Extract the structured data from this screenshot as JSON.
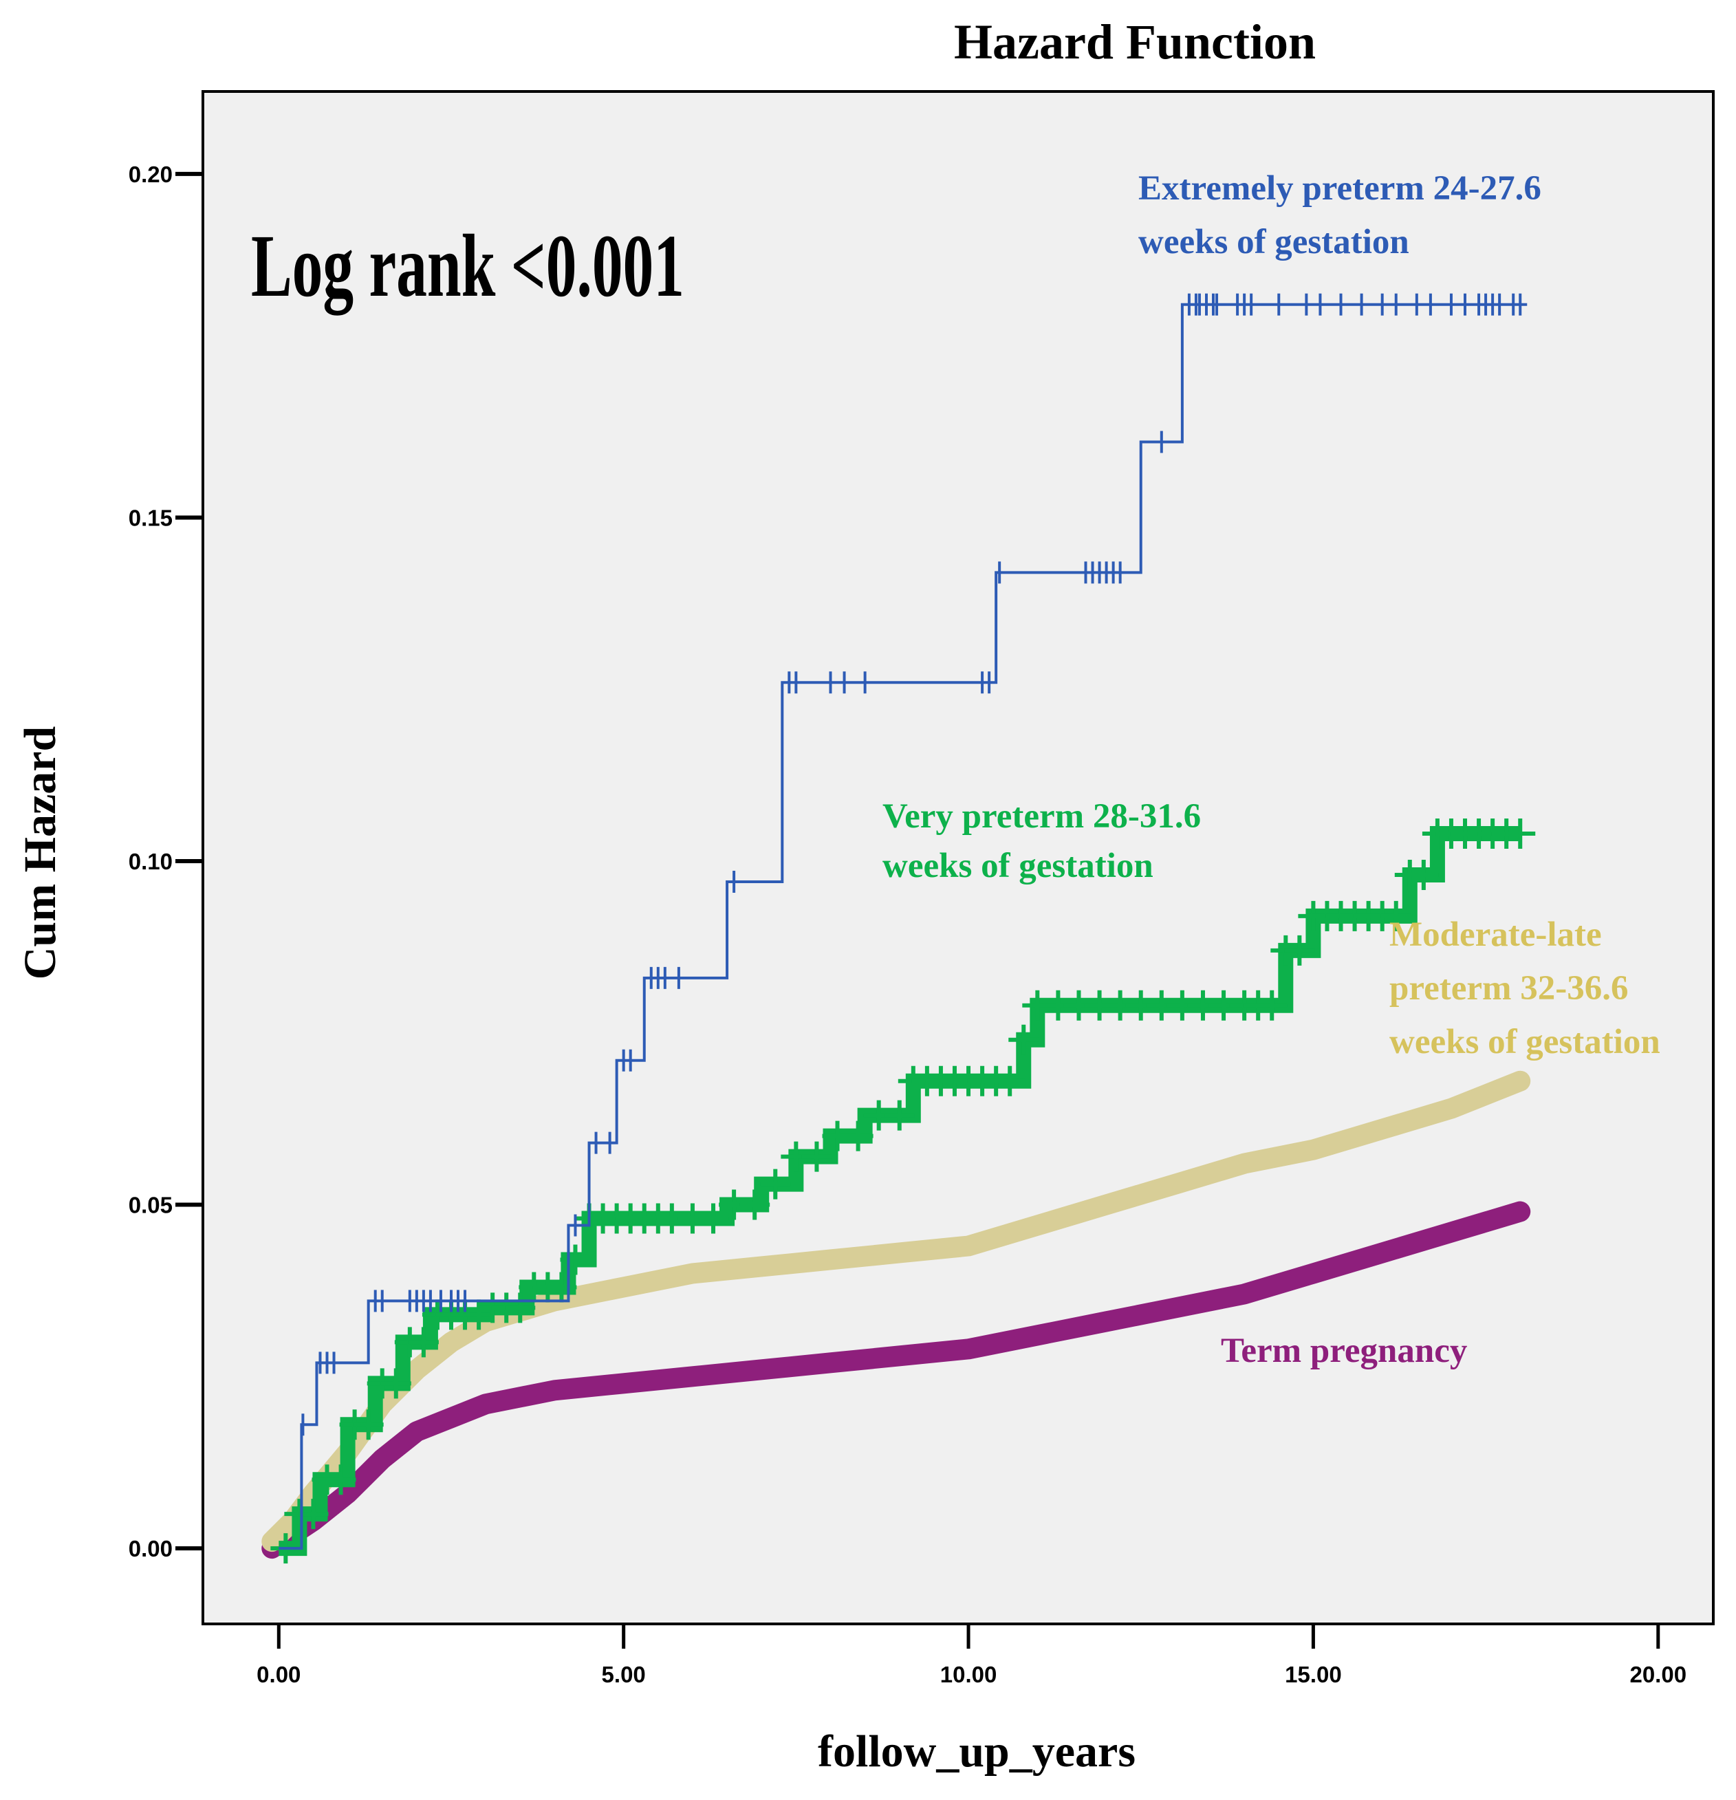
{
  "chart_data": {
    "type": "line",
    "title": "Hazard Function",
    "xlabel": "follow_up_years",
    "ylabel": "Cum Hazard",
    "xlim": [
      -1.1,
      20.8
    ],
    "ylim": [
      -0.011,
      0.212
    ],
    "x_ticks": [
      0,
      5,
      10,
      15,
      20
    ],
    "x_tick_labels": [
      "0.00",
      "5.00",
      "10.00",
      "15.00",
      "20.00"
    ],
    "y_ticks": [
      0,
      0.05,
      0.1,
      0.15,
      0.2
    ],
    "y_tick_labels": [
      "0.00",
      "0.05",
      "0.10",
      "0.15",
      "0.20"
    ],
    "grid": false,
    "annotation": "Log rank <0.001",
    "colors": {
      "background": "#f0f0f0",
      "extremely": "#2d5bb5",
      "very": "#0db14b",
      "moderate": "#d8ce97",
      "moderate_label": "#d6c25c",
      "term": "#8e1f7c"
    },
    "series": [
      {
        "name": "Extremely preterm 24-27.6 weeks of gestation",
        "label_lines": [
          "Extremely preterm 24-27.6",
          "weeks of gestation"
        ],
        "style": "step",
        "color_key": "extremely",
        "points": [
          [
            0,
            0
          ],
          [
            0.33,
            0.018
          ],
          [
            0.55,
            0.027
          ],
          [
            1.3,
            0.036
          ],
          [
            4.2,
            0.047
          ],
          [
            4.5,
            0.059
          ],
          [
            4.9,
            0.071
          ],
          [
            5.3,
            0.083
          ],
          [
            6.5,
            0.097
          ],
          [
            7.3,
            0.126
          ],
          [
            10.4,
            0.142
          ],
          [
            12.5,
            0.161
          ],
          [
            13.1,
            0.181
          ],
          [
            18.1,
            0.181
          ]
        ],
        "censor_x": [
          0.35,
          0.6,
          0.7,
          0.8,
          1.4,
          1.5,
          1.9,
          2.0,
          2.1,
          2.2,
          2.35,
          2.5,
          2.6,
          2.7,
          4.3,
          4.6,
          4.8,
          5.0,
          5.1,
          5.4,
          5.5,
          5.6,
          5.8,
          6.6,
          7.4,
          7.5,
          8.0,
          8.2,
          8.5,
          10.2,
          10.3,
          10.45,
          11.7,
          11.8,
          11.9,
          12.0,
          12.1,
          12.2,
          12.8,
          13.2,
          13.3,
          13.35,
          13.45,
          13.55,
          13.6,
          13.9,
          14.0,
          14.1,
          14.5,
          14.9,
          15.1,
          15.4,
          15.7,
          16.0,
          16.2,
          16.5,
          16.7,
          17.0,
          17.2,
          17.4,
          17.5,
          17.6,
          17.7,
          17.9,
          18.0
        ]
      },
      {
        "name": "Very preterm 28-31.6 weeks of gestation",
        "label_lines": [
          "Very  preterm 28-31.6",
          "weeks of gestation"
        ],
        "style": "dense-step",
        "color_key": "very",
        "points": [
          [
            0,
            0
          ],
          [
            0.3,
            0.005
          ],
          [
            0.6,
            0.01
          ],
          [
            1.0,
            0.018
          ],
          [
            1.4,
            0.024
          ],
          [
            1.8,
            0.03
          ],
          [
            2.2,
            0.034
          ],
          [
            3.0,
            0.035
          ],
          [
            3.6,
            0.038
          ],
          [
            4.2,
            0.042
          ],
          [
            4.5,
            0.048
          ],
          [
            5.5,
            0.048
          ],
          [
            6.5,
            0.05
          ],
          [
            7.0,
            0.053
          ],
          [
            7.5,
            0.057
          ],
          [
            8.0,
            0.06
          ],
          [
            8.5,
            0.063
          ],
          [
            9.2,
            0.068
          ],
          [
            10.5,
            0.068
          ],
          [
            10.8,
            0.074
          ],
          [
            11.0,
            0.079
          ],
          [
            14.3,
            0.079
          ],
          [
            14.6,
            0.087
          ],
          [
            15.0,
            0.092
          ],
          [
            16.2,
            0.092
          ],
          [
            16.4,
            0.098
          ],
          [
            16.8,
            0.104
          ],
          [
            18.0,
            0.104
          ]
        ],
        "censor_x": [
          0.1,
          0.3,
          0.5,
          0.7,
          0.9,
          1.1,
          1.3,
          1.5,
          1.7,
          1.9,
          2.1,
          2.3,
          2.5,
          2.7,
          2.9,
          3.1,
          3.3,
          3.5,
          3.7,
          3.9,
          4.1,
          4.3,
          4.5,
          4.7,
          4.9,
          5.1,
          5.3,
          5.5,
          5.7,
          6.0,
          6.3,
          6.6,
          6.9,
          7.2,
          7.5,
          7.8,
          8.1,
          8.4,
          8.7,
          9.0,
          9.2,
          9.4,
          9.6,
          9.8,
          10.0,
          10.2,
          10.4,
          10.6,
          10.8,
          11.0,
          11.3,
          11.6,
          11.9,
          12.2,
          12.5,
          12.8,
          13.1,
          13.4,
          13.7,
          14.0,
          14.2,
          14.4,
          14.6,
          14.8,
          15.0,
          15.2,
          15.4,
          15.6,
          15.8,
          16.0,
          16.2,
          16.4,
          16.6,
          16.8,
          17.0,
          17.2,
          17.4,
          17.6,
          17.8,
          18.0
        ]
      },
      {
        "name": "Moderate-late preterm 32-36.6 weeks of gestation",
        "label_lines": [
          "Moderate-late",
          "preterm 32-36.6",
          "weeks of gestation"
        ],
        "style": "thick",
        "color_key": "moderate",
        "points": [
          [
            -0.1,
            0.001
          ],
          [
            0.2,
            0.004
          ],
          [
            0.5,
            0.008
          ],
          [
            1.0,
            0.014
          ],
          [
            1.5,
            0.021
          ],
          [
            2.0,
            0.026
          ],
          [
            2.5,
            0.03
          ],
          [
            3.0,
            0.033
          ],
          [
            4.0,
            0.036
          ],
          [
            5.0,
            0.038
          ],
          [
            6.0,
            0.04
          ],
          [
            7.0,
            0.041
          ],
          [
            8.0,
            0.042
          ],
          [
            9.0,
            0.043
          ],
          [
            10.0,
            0.044
          ],
          [
            11.0,
            0.047
          ],
          [
            12.0,
            0.05
          ],
          [
            13.0,
            0.053
          ],
          [
            14.0,
            0.056
          ],
          [
            15.0,
            0.058
          ],
          [
            16.0,
            0.061
          ],
          [
            17.0,
            0.064
          ],
          [
            18.0,
            0.068
          ]
        ]
      },
      {
        "name": "Term pregnancy",
        "label_lines": [
          "Term pregnancy"
        ],
        "style": "thick",
        "color_key": "term",
        "points": [
          [
            -0.1,
            0
          ],
          [
            0.2,
            0.002
          ],
          [
            0.5,
            0.004
          ],
          [
            1.0,
            0.008
          ],
          [
            1.5,
            0.013
          ],
          [
            2.0,
            0.017
          ],
          [
            2.5,
            0.019
          ],
          [
            3.0,
            0.021
          ],
          [
            4.0,
            0.023
          ],
          [
            5.0,
            0.024
          ],
          [
            6.0,
            0.025
          ],
          [
            7.0,
            0.026
          ],
          [
            8.0,
            0.027
          ],
          [
            9.0,
            0.028
          ],
          [
            10.0,
            0.029
          ],
          [
            11.0,
            0.031
          ],
          [
            12.0,
            0.033
          ],
          [
            13.0,
            0.035
          ],
          [
            14.0,
            0.037
          ],
          [
            15.0,
            0.04
          ],
          [
            16.0,
            0.043
          ],
          [
            17.0,
            0.046
          ],
          [
            18.0,
            0.049
          ]
        ]
      }
    ]
  }
}
